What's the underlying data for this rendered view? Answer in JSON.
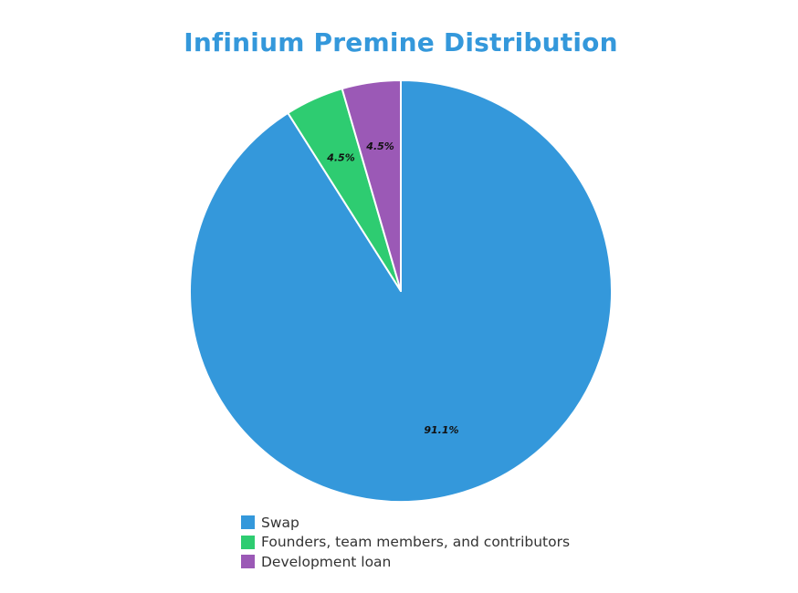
{
  "chart_data": {
    "type": "pie",
    "title": "Infinium Premine Distribution",
    "title_color": "#3498db",
    "label_color": "#111111",
    "slice_border_color": "#ffffff",
    "legend_position": "bottom",
    "slices": [
      {
        "label": "Swap",
        "value": 91.1,
        "display": "91.1%",
        "color": "#3498db"
      },
      {
        "label": "Founders, team members, and contributors",
        "value": 4.5,
        "display": "4.5%",
        "color": "#2ecc71"
      },
      {
        "label": "Development loan",
        "value": 4.5,
        "display": "4.5%",
        "color": "#9b59b6"
      }
    ]
  }
}
